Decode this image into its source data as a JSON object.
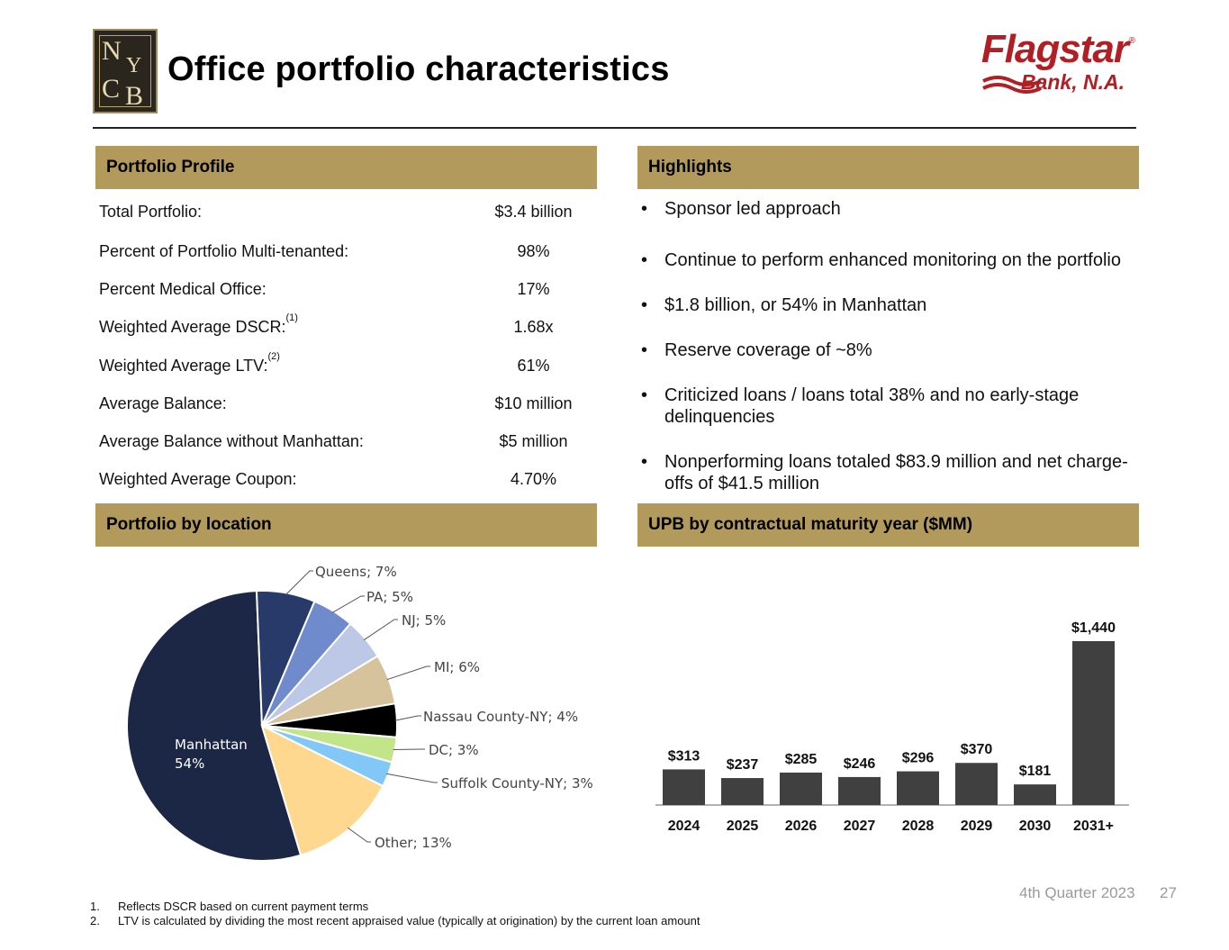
{
  "header": {
    "title": "Office portfolio characteristics",
    "logo_left": {
      "letters": [
        "N",
        "Y",
        "C",
        "B"
      ]
    },
    "logo_right": {
      "name": "Flagstar",
      "reg": "®",
      "subtitle": "Bank, N.A.",
      "color": "#b01f24"
    }
  },
  "accent_color": "#b2995c",
  "portfolio_profile": {
    "header": "Portfolio Profile",
    "rows": [
      {
        "label": "Total Portfolio:",
        "sup": "",
        "value": "$3.4 billion"
      },
      {
        "label": "Percent of Portfolio Multi-tenanted:",
        "sup": "",
        "value": "98%"
      },
      {
        "label": "Percent Medical Office:",
        "sup": "",
        "value": "17%"
      },
      {
        "label": "Weighted Average DSCR:",
        "sup": "(1)",
        "value": "1.68x"
      },
      {
        "label": "Weighted Average LTV:",
        "sup": "(2)",
        "value": "61%"
      },
      {
        "label": "Average Balance:",
        "sup": "",
        "value": "$10 million"
      },
      {
        "label": "Average Balance without Manhattan:",
        "sup": "",
        "value": "$5 million"
      },
      {
        "label": "Weighted Average Coupon:",
        "sup": "",
        "value": "4.70%"
      }
    ]
  },
  "highlights": {
    "header": "Highlights",
    "bullet_char": "•",
    "items": [
      "Sponsor led approach",
      "Continue to perform enhanced monitoring on the portfolio",
      "$1.8 billion, or 54% in Manhattan",
      "Reserve coverage of ~8%",
      "Criticized loans / loans total 38% and no early-stage delinquencies",
      "Nonperforming loans totaled $83.9 million and net charge-offs of $41.5 million"
    ]
  },
  "location": {
    "header": "Portfolio by location"
  },
  "maturity": {
    "header": "UPB by contractual maturity year ($MM)"
  },
  "chart_data": [
    {
      "type": "pie",
      "slices": [
        {
          "label": "Manhattan",
          "value": 54,
          "display": "54%",
          "color": "#1b2744"
        },
        {
          "label": "Queens",
          "value": 7,
          "display": "Queens; 7%",
          "color": "#273a69"
        },
        {
          "label": "PA",
          "value": 5,
          "display": "PA; 5%",
          "color": "#6f8bcb"
        },
        {
          "label": "NJ",
          "value": 5,
          "display": "NJ; 5%",
          "color": "#bcc8e6"
        },
        {
          "label": "MI",
          "value": 6,
          "display": "MI; 6%",
          "color": "#d6c39c"
        },
        {
          "label": "Nassau County-NY",
          "value": 4,
          "display": "Nassau County-NY; 4%",
          "color": "#000000"
        },
        {
          "label": "DC",
          "value": 3,
          "display": "DC; 3%",
          "color": "#c3e58a"
        },
        {
          "label": "Suffolk County-NY",
          "value": 3,
          "display": "Suffolk County-NY; 3%",
          "color": "#82c8f6"
        },
        {
          "label": "Other",
          "value": 13,
          "display": "Other; 13%",
          "color": "#fed88f"
        }
      ]
    },
    {
      "type": "bar",
      "categories": [
        "2024",
        "2025",
        "2026",
        "2027",
        "2028",
        "2029",
        "2030",
        "2031+"
      ],
      "values": [
        313,
        237,
        285,
        246,
        296,
        370,
        181,
        1440
      ],
      "value_labels": [
        "$313",
        "$237",
        "$285",
        "$246",
        "$296",
        "$370",
        "$181",
        "$1,440"
      ],
      "bar_color": "#404040",
      "ylim": [
        0,
        1440
      ]
    }
  ],
  "footnotes": [
    {
      "num": "1.",
      "text": "Reflects DSCR based on current payment terms"
    },
    {
      "num": "2.",
      "text": "LTV is calculated by dividing the most recent appraised value (typically at origination) by the current loan amount"
    }
  ],
  "footer": {
    "date": "4th Quarter 2023",
    "page": "27"
  }
}
